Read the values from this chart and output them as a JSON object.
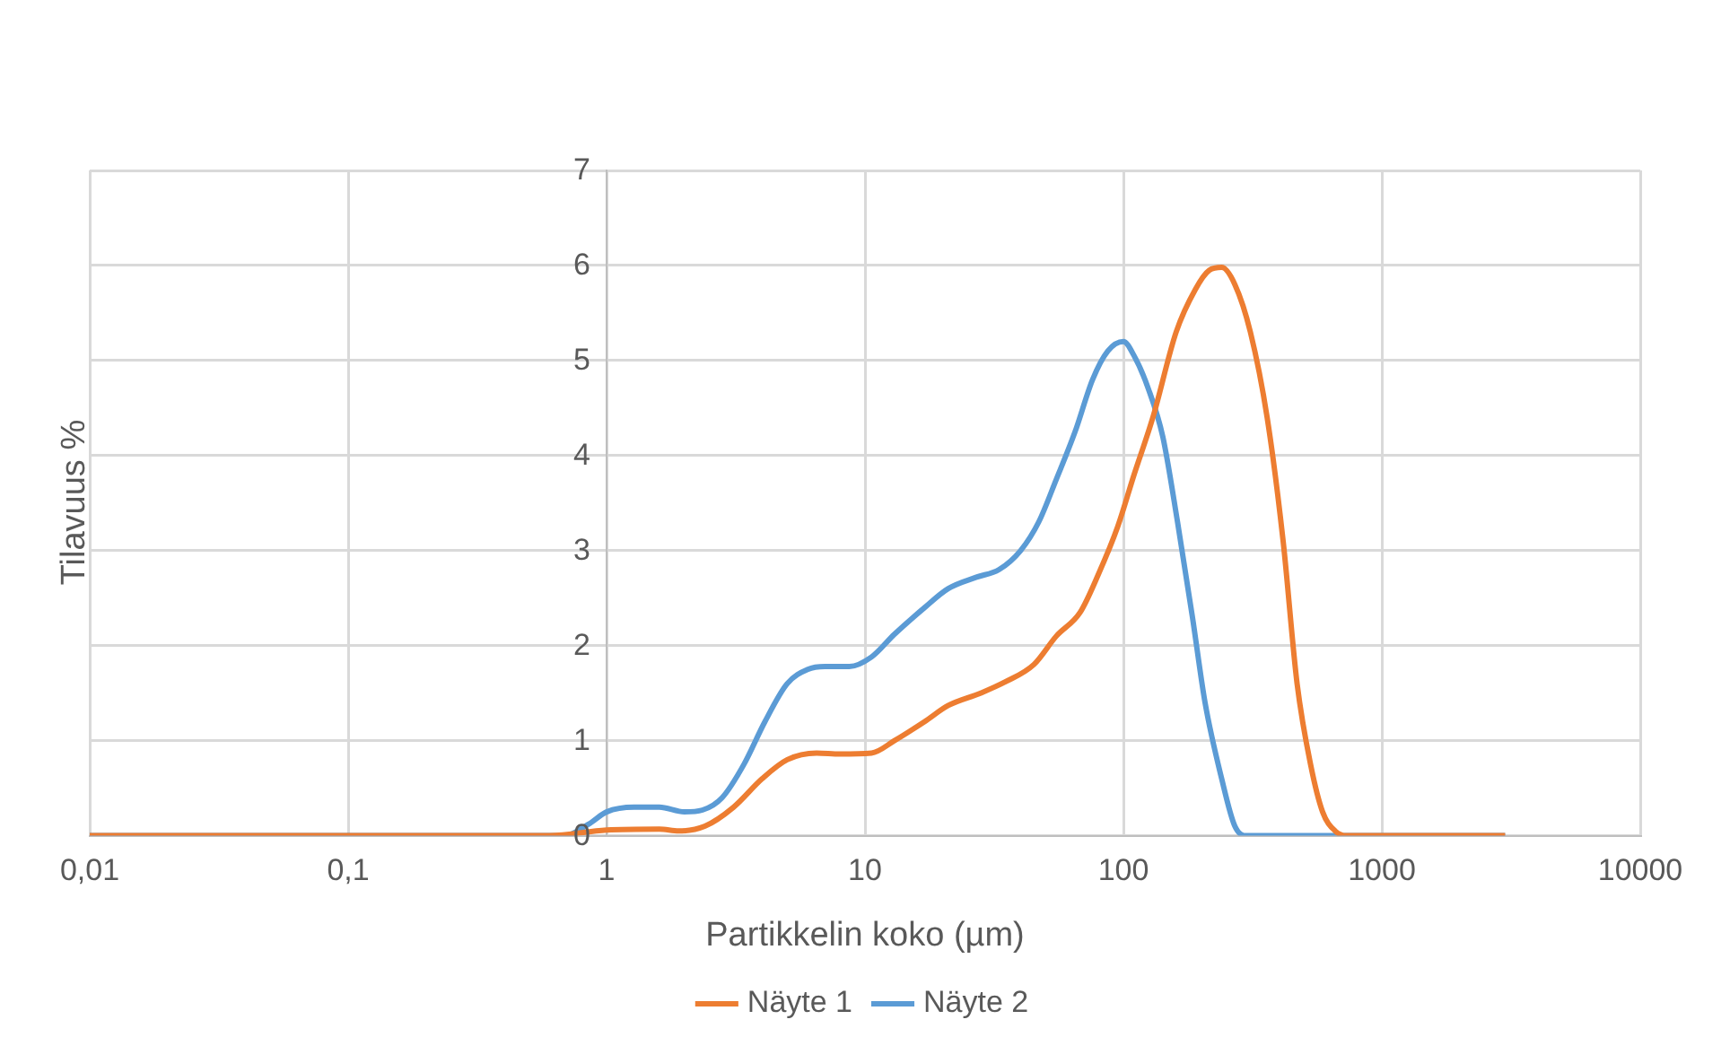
{
  "chart_data": {
    "type": "line",
    "xlabel": "Partikkelin koko (µm)",
    "ylabel": "Tilavuus %",
    "log": "x",
    "xlim": [
      0.01,
      10000
    ],
    "xticks": [
      {
        "value": 0.01,
        "label": "0,01"
      },
      {
        "value": 0.1,
        "label": "0,1"
      },
      1,
      10,
      100,
      1000,
      10000
    ],
    "ylim": [
      0,
      7
    ],
    "yticks": [
      0,
      1,
      2,
      3,
      4,
      5,
      6,
      7
    ],
    "grid": true,
    "legend": "bottom",
    "marker": "none",
    "line_style": "solid",
    "series": [
      {
        "name": "Näyte 1",
        "color": "#ed7d31",
        "x": [
          0.01,
          0.6,
          1,
          1.6,
          1.9,
          2.4,
          3.1,
          4,
          5,
          6.5,
          8,
          10.6,
          13,
          17,
          21,
          28,
          35,
          45,
          55,
          68,
          80,
          95,
          110,
          130,
          160,
          190,
          215,
          240,
          270,
          310,
          360,
          415,
          470,
          530,
          590,
          660,
          730,
          3000
        ],
        "values": [
          0,
          0,
          0.06,
          0.07,
          0.05,
          0.1,
          0.3,
          0.6,
          0.8,
          0.87,
          0.86,
          0.87,
          1.0,
          1.2,
          1.37,
          1.5,
          1.62,
          1.8,
          2.1,
          2.35,
          2.75,
          3.25,
          3.8,
          4.4,
          5.3,
          5.75,
          5.95,
          5.98,
          5.8,
          5.3,
          4.4,
          3.1,
          1.6,
          0.75,
          0.25,
          0.05,
          0,
          0
        ]
      },
      {
        "name": "Näyte 2",
        "color": "#5b9bd5",
        "x": [
          0.01,
          0.69,
          0.85,
          1,
          1.28,
          1.6,
          2,
          2.35,
          2.8,
          3.4,
          4.1,
          5,
          6,
          7,
          8.7,
          10.6,
          13,
          17,
          21,
          27,
          33,
          40,
          47,
          55,
          65,
          76,
          87,
          100,
          110,
          125,
          142,
          162,
          185,
          207,
          240,
          270,
          300,
          3000
        ],
        "values": [
          0,
          0,
          0.12,
          0.25,
          0.3,
          0.3,
          0.25,
          0.27,
          0.4,
          0.75,
          1.2,
          1.6,
          1.75,
          1.78,
          1.78,
          1.88,
          2.12,
          2.4,
          2.6,
          2.72,
          2.8,
          3.0,
          3.3,
          3.75,
          4.25,
          4.8,
          5.1,
          5.2,
          5.05,
          4.7,
          4.2,
          3.3,
          2.3,
          1.4,
          0.6,
          0.1,
          0,
          0
        ]
      }
    ]
  }
}
